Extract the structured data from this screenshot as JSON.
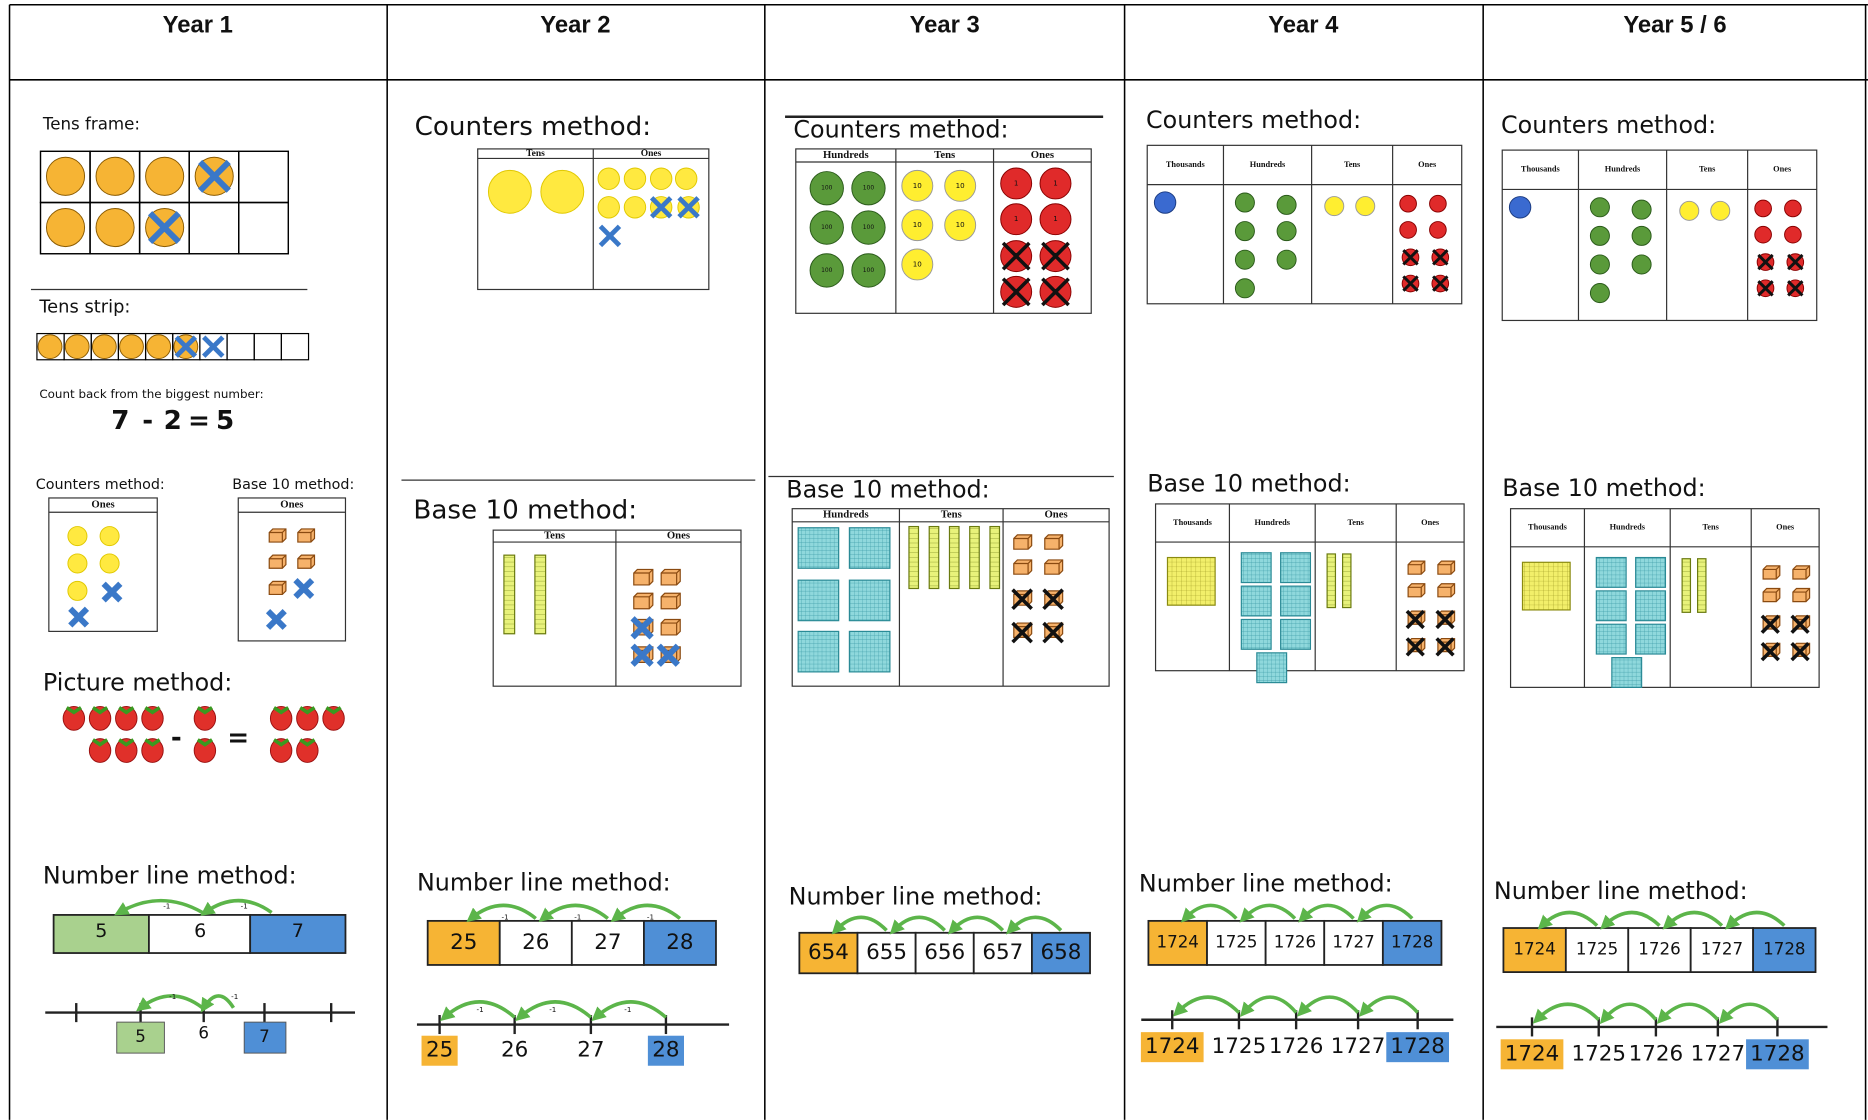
{
  "header": {
    "columns": [
      "Year 1",
      "Year 2",
      "Year 3",
      "Year 4",
      "Year 5 / 6"
    ]
  },
  "year1": {
    "tens_frame_label": "Tens frame:",
    "tens_strip_label": "Tens strip:",
    "count_back_note": "Count back from the biggest number:",
    "equation": [
      "7",
      "-",
      "2",
      "=",
      "5"
    ],
    "counters_label": "Counters method:",
    "counters_headers": [
      "Ones"
    ],
    "base10_label": "Base 10 method:",
    "base10_headers": [
      "Ones"
    ],
    "picture_label": "Picture method:",
    "picture_signs": [
      "-",
      "="
    ],
    "number_line_label": "Number line method:",
    "number_bar": [
      "5",
      "6",
      "7"
    ],
    "number_line": [
      "5",
      "6",
      "7"
    ],
    "jump_label": "-1"
  },
  "year2": {
    "counters_label": "Counters method:",
    "counters_headers": [
      "Tens",
      "Ones"
    ],
    "base10_label": "Base 10 method:",
    "base10_headers": [
      "Tens",
      "Ones"
    ],
    "number_line_label": "Number line method:",
    "number_bar": [
      "25",
      "26",
      "27",
      "28"
    ],
    "number_line": [
      "25",
      "26",
      "27",
      "28"
    ],
    "jump_label": "-1"
  },
  "year3": {
    "counters_label": "Counters method:",
    "counters_headers": [
      "Hundreds",
      "Tens",
      "Ones"
    ],
    "counter_labels": [
      "100",
      "10",
      "1"
    ],
    "base10_label": "Base 10 method:",
    "base10_headers": [
      "Hundreds",
      "Tens",
      "Ones"
    ],
    "number_line_label": "Number line method:",
    "number_bar": [
      "654",
      "655",
      "656",
      "657",
      "658"
    ]
  },
  "year4": {
    "counters_label": "Counters method:",
    "counters_headers": [
      "Thousands",
      "Hundreds",
      "Tens",
      "Ones"
    ],
    "base10_label": "Base 10 method:",
    "base10_headers": [
      "Thousands",
      "Hundreds",
      "Tens",
      "Ones"
    ],
    "number_line_label": "Number line method:",
    "number_bar": [
      "1724",
      "1725",
      "1726",
      "1727",
      "1728"
    ],
    "number_line": [
      "1724",
      "1725",
      "1726",
      "1727",
      "1728"
    ]
  },
  "year5_6": {
    "counters_label": "Counters method:",
    "counters_headers": [
      "Thousands",
      "Hundreds",
      "Tens",
      "Ones"
    ],
    "base10_label": "Base 10 method:",
    "base10_headers": [
      "Thousands",
      "Hundreds",
      "Tens",
      "Ones"
    ],
    "number_line_label": "Number line method:",
    "number_bar": [
      "1724",
      "1725",
      "1726",
      "1727",
      "1728"
    ],
    "number_line": [
      "1724",
      "1725",
      "1726",
      "1727",
      "1728"
    ]
  }
}
